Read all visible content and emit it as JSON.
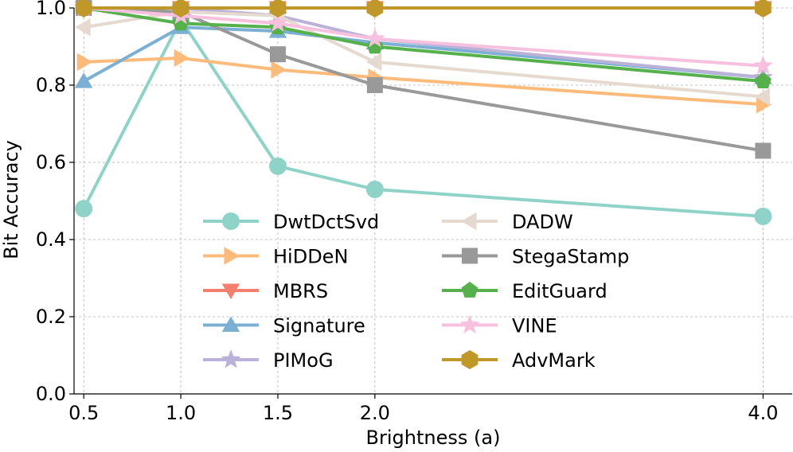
{
  "chart_data": {
    "type": "line",
    "title": "",
    "xlabel": "Brightness (a)",
    "ylabel": "Bit Accuracy",
    "x": [
      0.5,
      1.0,
      1.5,
      2.0,
      4.0
    ],
    "x_ticks": [
      "0.5",
      "1.0",
      "1.5",
      "2.0",
      "4.0"
    ],
    "y_ticks": [
      "0.0",
      "0.2",
      "0.4",
      "0.6",
      "0.8",
      "1.0"
    ],
    "xlim": [
      0.45,
      4.15
    ],
    "ylim": [
      0,
      1.0
    ],
    "grid": true,
    "legend_placement": "lower-center",
    "series": [
      {
        "name": "DwtDctSvd",
        "color": "#8fd3c8",
        "marker": "circle",
        "values": [
          0.48,
          0.97,
          0.59,
          0.53,
          0.46
        ]
      },
      {
        "name": "HiDDeN",
        "color": "#fdbb7b",
        "marker": "triangle-right",
        "values": [
          0.86,
          0.87,
          0.84,
          0.82,
          0.75
        ]
      },
      {
        "name": "MBRS",
        "color": "#f47f6e",
        "marker": "triangle-down",
        "values": [
          1.0,
          1.0,
          1.0,
          1.0,
          1.0
        ]
      },
      {
        "name": "Signature",
        "color": "#7bafd4",
        "marker": "triangle-up",
        "values": [
          0.81,
          0.95,
          0.94,
          0.91,
          0.82
        ]
      },
      {
        "name": "PIMoG",
        "color": "#bcb2d9",
        "marker": "star",
        "values": [
          1.0,
          1.0,
          0.98,
          0.92,
          0.82
        ]
      },
      {
        "name": "DADW",
        "color": "#e6d9d0",
        "marker": "triangle-left",
        "values": [
          0.95,
          0.99,
          0.98,
          0.86,
          0.77
        ]
      },
      {
        "name": "StegaStamp",
        "color": "#999999",
        "marker": "square",
        "values": [
          1.0,
          0.99,
          0.88,
          0.8,
          0.63
        ]
      },
      {
        "name": "EditGuard",
        "color": "#56b04c",
        "marker": "pentagon",
        "values": [
          1.0,
          0.96,
          0.95,
          0.9,
          0.81
        ]
      },
      {
        "name": "VINE",
        "color": "#f7c0de",
        "marker": "star",
        "values": [
          1.0,
          0.98,
          0.96,
          0.92,
          0.85
        ]
      },
      {
        "name": "AdvMark",
        "color": "#c0982a",
        "marker": "hexagon",
        "values": [
          1.0,
          1.0,
          1.0,
          1.0,
          1.0
        ]
      }
    ]
  }
}
